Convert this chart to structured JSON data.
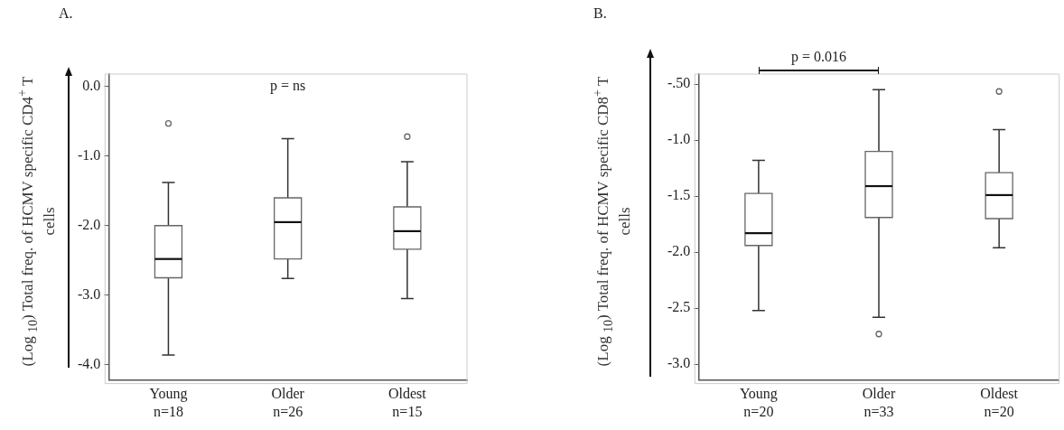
{
  "chart_data": [
    {
      "type": "box",
      "title": "A.",
      "ylabel": "(Log $_{10}$) Total freq. of HCMV specific CD4$^{+}$ T cells",
      "categories": [
        "Young\nn=18",
        "Older\nn=26",
        "Oldest\nn=15"
      ],
      "color": "#666666",
      "boxes": [
        {
          "low": -3.86,
          "q1": -2.75,
          "median": -2.48,
          "q3": -2.0,
          "high": -1.38,
          "outliers": [
            -0.53
          ]
        },
        {
          "low": -2.76,
          "q1": -2.48,
          "median": -1.95,
          "q3": -1.6,
          "high": -0.75
        },
        {
          "low": -3.05,
          "q1": -2.34,
          "median": -2.08,
          "q3": -1.73,
          "high": -1.08,
          "outliers": [
            -0.72
          ]
        }
      ],
      "ylim": [
        -4.22,
        0.18
      ],
      "yticks": [
        {
          "value": 0,
          "label": "0.0"
        },
        {
          "value": -1,
          "label": "-1.0"
        },
        {
          "value": -2,
          "label": "-2.0"
        },
        {
          "value": -3,
          "label": "-3.0"
        },
        {
          "value": -4,
          "label": "-4.0"
        }
      ],
      "grid": false,
      "annotations": [
        "p = ns"
      ]
    },
    {
      "type": "box",
      "title": "B.",
      "ylabel": "(Log $_{10}$) Total freq. of HCMV specific CD8$^{+}$ T cells",
      "categories": [
        "Young\nn=20",
        "Older\nn=33",
        "Oldest\nn=20"
      ],
      "color": "#666666",
      "boxes": [
        {
          "low": -2.52,
          "q1": -1.94,
          "median": -1.83,
          "q3": -1.475,
          "high": -1.18
        },
        {
          "low": -2.58,
          "q1": -1.69,
          "median": -1.41,
          "q3": -1.1,
          "high": -0.55,
          "outliers": [
            -2.73
          ]
        },
        {
          "low": -1.96,
          "q1": -1.7,
          "median": -1.49,
          "q3": -1.29,
          "high": -0.905,
          "outliers": [
            -0.565
          ]
        }
      ],
      "ylim": [
        -3.14,
        -0.41
      ],
      "yticks": [
        {
          "value": -0.5,
          "label": "-.50"
        },
        {
          "value": -1,
          "label": "-1.0"
        },
        {
          "value": -1.5,
          "label": "-1.5"
        },
        {
          "value": -2,
          "label": "-2.0"
        },
        {
          "value": -2.5,
          "label": "-2.5"
        },
        {
          "value": -3,
          "label": "-3.0"
        }
      ],
      "grid": false,
      "annotations": [
        "p = 0.016"
      ]
    }
  ]
}
